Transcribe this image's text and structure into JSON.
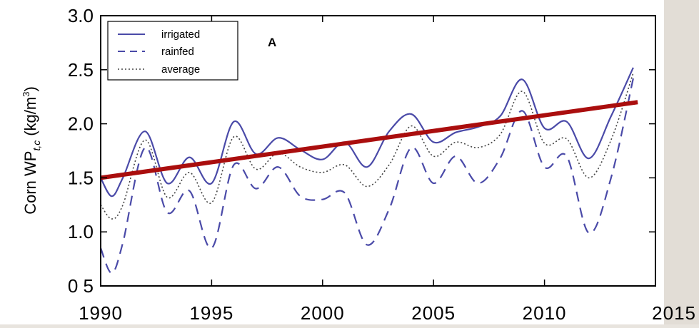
{
  "chart_data": {
    "type": "line",
    "panel_label": "A",
    "ylabel_main": "Corn WP",
    "ylabel_sub": "t,c",
    "ylabel_unit": "(kg/m",
    "ylabel_unit_sup": "3",
    "ylabel_unit_close": ")",
    "xlim": [
      1990,
      2015
    ],
    "ylim": [
      0.5,
      3.0
    ],
    "x_ticks": [
      1990,
      1995,
      2000,
      2005,
      2010,
      2015
    ],
    "x_tick_labels": [
      "1990",
      "1995",
      "2000",
      "2005",
      "2010",
      "2015"
    ],
    "y_ticks": [
      0.5,
      1.0,
      1.5,
      2.0,
      2.5,
      3.0
    ],
    "y_tick_labels": [
      "0 5",
      "1.0",
      "1.5",
      "2.0",
      "2.5",
      "3.0"
    ],
    "grid": false,
    "legend_position": "top-left",
    "series": [
      {
        "name": "irrigated",
        "style": "solid",
        "color": "#4a4aa8",
        "x": [
          1990,
          1990.5,
          1991,
          1992,
          1993,
          1994,
          1995,
          1996,
          1997,
          1998,
          1999,
          2000,
          2001,
          2002,
          2003,
          2004,
          2005,
          2006,
          2007,
          2008,
          2009,
          2010,
          2011,
          2012,
          2013,
          2014
        ],
        "y": [
          1.5,
          1.33,
          1.5,
          1.93,
          1.45,
          1.69,
          1.45,
          2.02,
          1.72,
          1.87,
          1.76,
          1.67,
          1.83,
          1.6,
          1.93,
          2.09,
          1.83,
          1.92,
          1.97,
          2.07,
          2.41,
          1.96,
          2.02,
          1.68,
          2.07,
          2.52
        ]
      },
      {
        "name": "rainfed",
        "style": "dashed",
        "color": "#4a4aa8",
        "x": [
          1990,
          1990.5,
          1991,
          1992,
          1993,
          1994,
          1995,
          1996,
          1997,
          1998,
          1999,
          2000,
          2001,
          2002,
          2003,
          2004,
          2005,
          2006,
          2007,
          2008,
          2009,
          2010,
          2011,
          2012,
          2013,
          2014
        ],
        "y": [
          0.85,
          0.62,
          0.9,
          1.78,
          1.18,
          1.38,
          0.85,
          1.62,
          1.4,
          1.6,
          1.33,
          1.3,
          1.36,
          0.88,
          1.21,
          1.78,
          1.45,
          1.7,
          1.45,
          1.68,
          2.12,
          1.6,
          1.7,
          0.99,
          1.5,
          2.42
        ]
      },
      {
        "name": "average",
        "style": "dotted",
        "color": "#444444",
        "x": [
          1990,
          1990.5,
          1991,
          1992,
          1993,
          1994,
          1995,
          1996,
          1997,
          1998,
          1999,
          2000,
          2001,
          2002,
          2003,
          2004,
          2005,
          2006,
          2007,
          2008,
          2009,
          2010,
          2011,
          2012,
          2013,
          2014
        ],
        "y": [
          1.25,
          1.12,
          1.25,
          1.85,
          1.32,
          1.55,
          1.27,
          1.88,
          1.58,
          1.73,
          1.6,
          1.55,
          1.62,
          1.42,
          1.62,
          1.98,
          1.7,
          1.83,
          1.78,
          1.9,
          2.3,
          1.82,
          1.86,
          1.5,
          1.85,
          2.47
        ]
      }
    ],
    "trend_line": {
      "color": "#aa0e0e",
      "x": [
        1990,
        2014.2
      ],
      "y": [
        1.5,
        2.2
      ]
    }
  }
}
